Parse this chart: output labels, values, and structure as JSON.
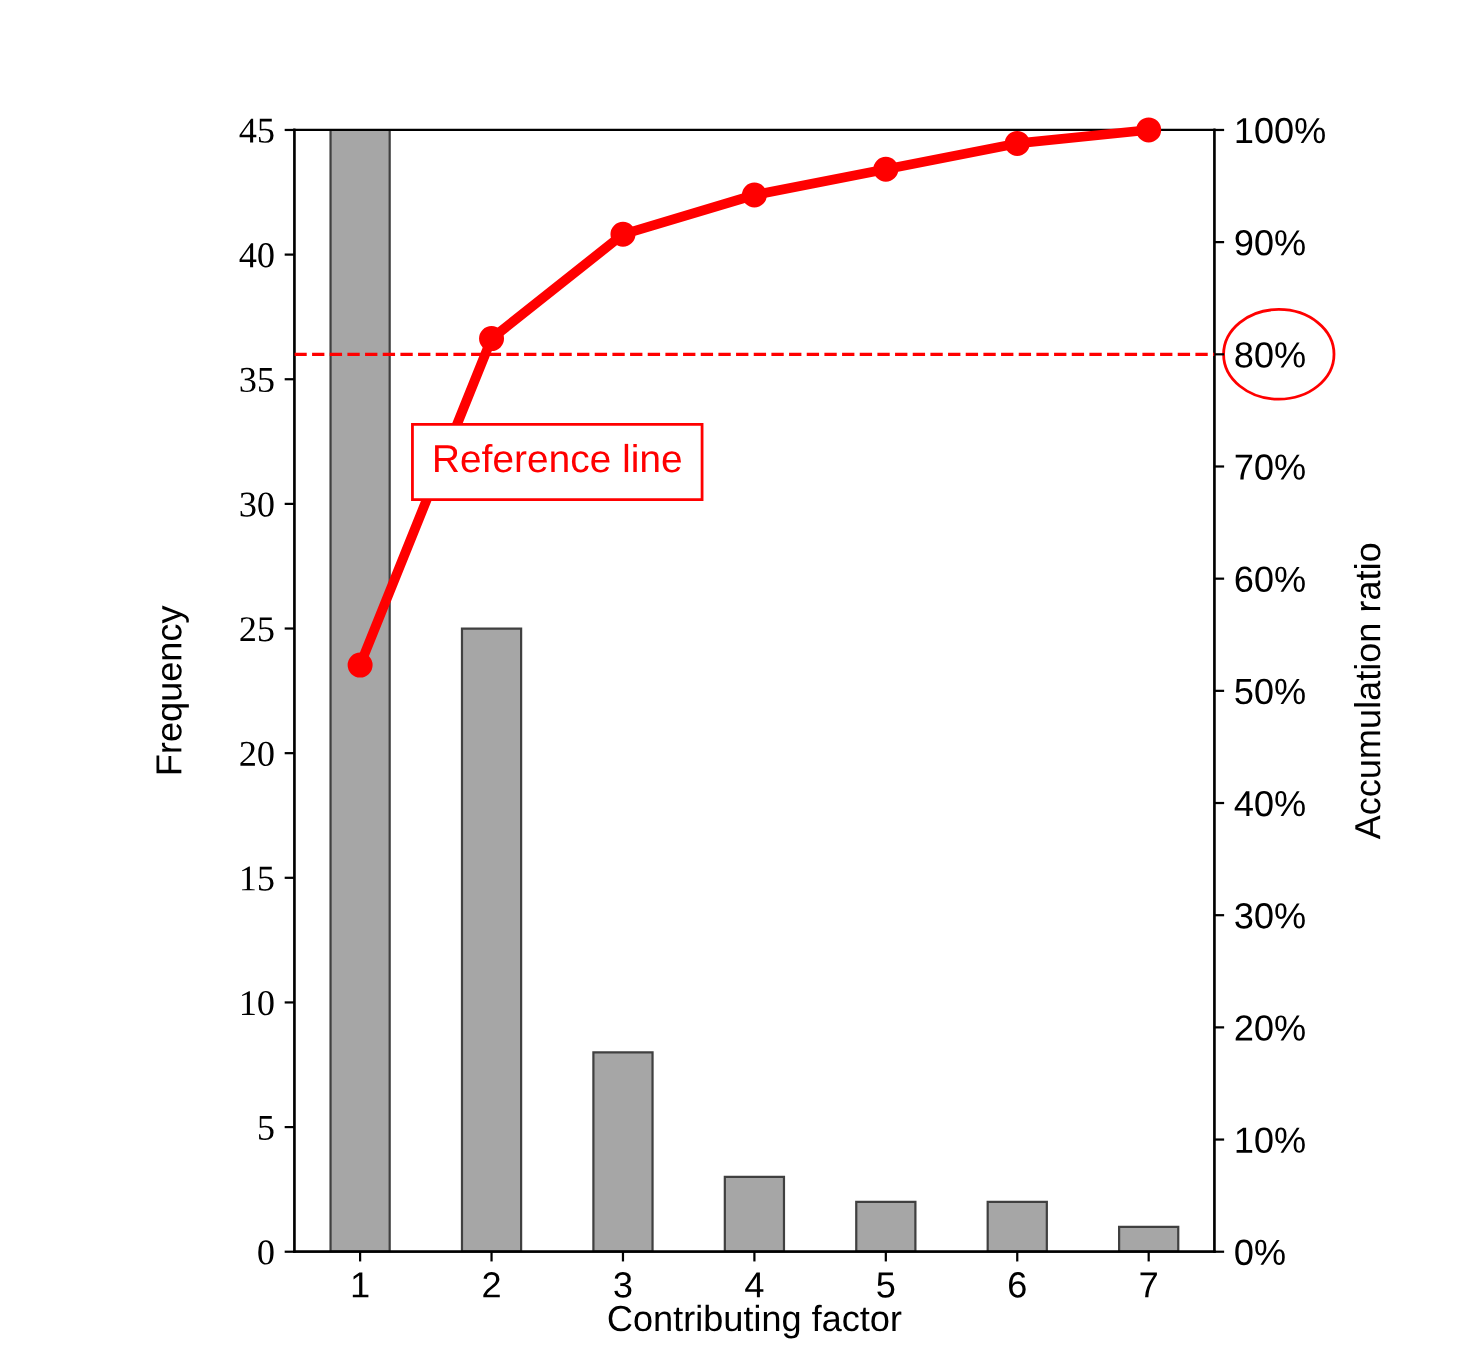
{
  "chart_data": {
    "type": "bar",
    "categories": [
      "1",
      "2",
      "3",
      "4",
      "5",
      "6",
      "7"
    ],
    "xlabel": "Contributing factor",
    "ylabel": "Frequency",
    "y2label": "Accumulation ratio",
    "series": [
      {
        "color": "#a6a6a6",
        "values": [
          45,
          25,
          8,
          3,
          2,
          2,
          1
        ]
      },
      {
        "type": "line",
        "axis": "y2",
        "color": "#ff0000",
        "marker": "circle",
        "line_style": "solid",
        "values": [
          52.3,
          81.4,
          90.7,
          94.2,
          96.5,
          98.8,
          100
        ]
      }
    ],
    "ylim": [
      0,
      45
    ],
    "yticks": [
      0,
      5,
      10,
      15,
      20,
      25,
      30,
      35,
      40,
      45
    ],
    "y2lim": [
      0,
      100
    ],
    "y2ticks": [
      {
        "value": 0,
        "label": "0%"
      },
      {
        "value": 10,
        "label": "10%"
      },
      {
        "value": 20,
        "label": "20%"
      },
      {
        "value": 30,
        "label": "30%"
      },
      {
        "value": 40,
        "label": "40%"
      },
      {
        "value": 50,
        "label": "50%"
      },
      {
        "value": 60,
        "label": "60%"
      },
      {
        "value": 70,
        "label": "70%"
      },
      {
        "value": 80,
        "label": "80%"
      },
      {
        "value": 90,
        "label": "90%"
      },
      {
        "value": 100,
        "label": "100%"
      }
    ],
    "ref_lines": [
      {
        "axis": "y2",
        "value": 80,
        "label": "Reference line",
        "color": "#ff0000",
        "line_style": "dashed"
      }
    ],
    "grid": false
  }
}
